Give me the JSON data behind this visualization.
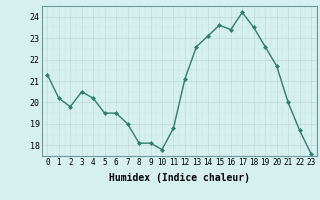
{
  "x": [
    0,
    1,
    2,
    3,
    4,
    5,
    6,
    7,
    8,
    9,
    10,
    11,
    12,
    13,
    14,
    15,
    16,
    17,
    18,
    19,
    20,
    21,
    22,
    23
  ],
  "y": [
    21.3,
    20.2,
    19.8,
    20.5,
    20.2,
    19.5,
    19.5,
    19.0,
    18.1,
    18.1,
    17.8,
    18.8,
    21.1,
    22.6,
    23.1,
    23.6,
    23.4,
    24.2,
    23.5,
    22.6,
    21.7,
    20.0,
    18.7,
    17.6
  ],
  "xlabel": "Humidex (Indice chaleur)",
  "ylim": [
    17.5,
    24.5
  ],
  "xlim": [
    -0.5,
    23.5
  ],
  "yticks": [
    18,
    19,
    20,
    21,
    22,
    23,
    24
  ],
  "xtick_labels": [
    "0",
    "1",
    "2",
    "3",
    "4",
    "5",
    "6",
    "7",
    "8",
    "9",
    "10",
    "11",
    "12",
    "13",
    "14",
    "15",
    "16",
    "17",
    "18",
    "19",
    "20",
    "21",
    "22",
    "23"
  ],
  "line_color": "#2e7d6e",
  "marker": "D",
  "marker_size": 2,
  "bg_color": "#d6f0f0",
  "grid_color": "#c0d8d8",
  "grid_minor_color": "#c8e0e0",
  "spine_color": "#6a9a9a"
}
